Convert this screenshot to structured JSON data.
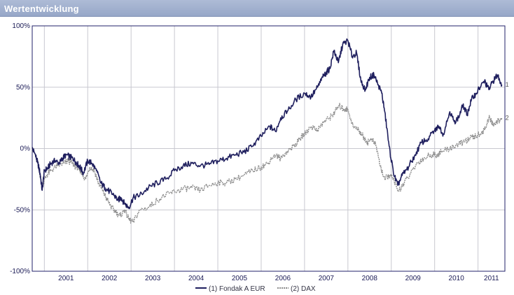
{
  "header": {
    "title": "Wertentwicklung"
  },
  "chart_data": {
    "type": "line",
    "title": "Wertentwicklung",
    "xlabel": "",
    "ylabel": "",
    "x_range": [
      2000.72,
      2011.62
    ],
    "ylim": [
      -100,
      100
    ],
    "y_ticks": [
      {
        "value": 100,
        "label": "100%"
      },
      {
        "value": 50,
        "label": "50%"
      },
      {
        "value": 0,
        "label": "0%"
      },
      {
        "value": -50,
        "label": "-50%"
      },
      {
        "value": -100,
        "label": "-100%"
      }
    ],
    "x_ticks": [
      {
        "value": 2001,
        "label": "2001"
      },
      {
        "value": 2002,
        "label": "2002"
      },
      {
        "value": 2003,
        "label": "2003"
      },
      {
        "value": 2004,
        "label": "2004"
      },
      {
        "value": 2005,
        "label": "2005"
      },
      {
        "value": 2006,
        "label": "2006"
      },
      {
        "value": 2007,
        "label": "2007"
      },
      {
        "value": 2008,
        "label": "2008"
      },
      {
        "value": 2009,
        "label": "2009"
      },
      {
        "value": 2010,
        "label": "2010"
      },
      {
        "value": 2011,
        "label": "2011"
      }
    ],
    "x_gridlines": [
      2001,
      2002,
      2003,
      2004,
      2005,
      2006,
      2007,
      2008,
      2009,
      2010,
      2011
    ],
    "grid": true,
    "legend": "bottom-center",
    "series": [
      {
        "name": "(1) Fondak A EUR",
        "end_label": "1",
        "color": "#1f1f5e",
        "x": [
          2000.72,
          2000.78,
          2000.85,
          2000.9,
          2000.95,
          2001.0,
          2001.08,
          2001.15,
          2001.25,
          2001.35,
          2001.42,
          2001.5,
          2001.6,
          2001.68,
          2001.75,
          2001.82,
          2001.9,
          2002.0,
          2002.1,
          2002.2,
          2002.3,
          2002.4,
          2002.5,
          2002.6,
          2002.7,
          2002.77,
          2002.85,
          2002.95,
          2003.05,
          2003.2,
          2003.4,
          2003.6,
          2003.8,
          2004.0,
          2004.2,
          2004.4,
          2004.6,
          2004.8,
          2005.0,
          2005.2,
          2005.4,
          2005.6,
          2005.8,
          2006.0,
          2006.2,
          2006.33,
          2006.45,
          2006.6,
          2006.8,
          2007.0,
          2007.15,
          2007.3,
          2007.42,
          2007.5,
          2007.58,
          2007.68,
          2007.78,
          2007.88,
          2008.0,
          2008.1,
          2008.2,
          2008.3,
          2008.4,
          2008.5,
          2008.6,
          2008.7,
          2008.78,
          2008.85,
          2008.95,
          2009.05,
          2009.15,
          2009.25,
          2009.4,
          2009.55,
          2009.7,
          2009.85,
          2010.0,
          2010.1,
          2010.2,
          2010.35,
          2010.45,
          2010.55,
          2010.65,
          2010.75,
          2010.85,
          2010.95,
          2011.05,
          2011.15,
          2011.25,
          2011.35,
          2011.45,
          2011.55
        ],
        "values": [
          0,
          -4,
          -12,
          -20,
          -34,
          -18,
          -16,
          -12,
          -10,
          -12,
          -8,
          -5,
          -7,
          -9,
          -12,
          -15,
          -20,
          -10,
          -12,
          -18,
          -28,
          -32,
          -35,
          -38,
          -42,
          -40,
          -45,
          -48,
          -40,
          -38,
          -32,
          -28,
          -25,
          -18,
          -14,
          -12,
          -14,
          -13,
          -10,
          -8,
          -5,
          -3,
          2,
          10,
          18,
          14,
          25,
          30,
          40,
          45,
          42,
          50,
          58,
          62,
          65,
          80,
          70,
          85,
          88,
          75,
          78,
          55,
          48,
          58,
          60,
          52,
          45,
          30,
          2,
          -20,
          -30,
          -22,
          -15,
          -5,
          5,
          8,
          15,
          18,
          12,
          30,
          22,
          25,
          35,
          28,
          40,
          45,
          50,
          55,
          48,
          55,
          60,
          52
        ]
      },
      {
        "name": "(2) DAX",
        "end_label": "2",
        "color": "#8c8c8c",
        "x": [
          2000.72,
          2000.8,
          2000.88,
          2000.95,
          2001.05,
          2001.15,
          2001.3,
          2001.45,
          2001.55,
          2001.65,
          2001.75,
          2001.85,
          2001.95,
          2002.05,
          2002.15,
          2002.25,
          2002.35,
          2002.45,
          2002.55,
          2002.65,
          2002.75,
          2002.85,
          2002.95,
          2003.05,
          2003.2,
          2003.4,
          2003.6,
          2003.8,
          2004.0,
          2004.2,
          2004.4,
          2004.6,
          2004.8,
          2005.0,
          2005.2,
          2005.4,
          2005.6,
          2005.8,
          2006.0,
          2006.15,
          2006.3,
          2006.45,
          2006.6,
          2006.75,
          2006.9,
          2007.0,
          2007.15,
          2007.3,
          2007.45,
          2007.58,
          2007.7,
          2007.8,
          2007.9,
          2008.0,
          2008.12,
          2008.25,
          2008.35,
          2008.45,
          2008.55,
          2008.65,
          2008.75,
          2008.85,
          2008.95,
          2009.05,
          2009.15,
          2009.3,
          2009.45,
          2009.6,
          2009.75,
          2009.9,
          2010.05,
          2010.2,
          2010.35,
          2010.5,
          2010.65,
          2010.8,
          2010.95,
          2011.05,
          2011.15,
          2011.25,
          2011.35,
          2011.45,
          2011.55
        ],
        "values": [
          0,
          -6,
          -18,
          -30,
          -22,
          -18,
          -14,
          -12,
          -10,
          -12,
          -16,
          -20,
          -25,
          -15,
          -18,
          -28,
          -35,
          -42,
          -48,
          -52,
          -55,
          -50,
          -58,
          -60,
          -50,
          -48,
          -42,
          -38,
          -35,
          -33,
          -32,
          -34,
          -30,
          -28,
          -28,
          -25,
          -22,
          -18,
          -15,
          -12,
          -5,
          -8,
          -2,
          2,
          8,
          12,
          18,
          15,
          22,
          25,
          30,
          35,
          32,
          32,
          18,
          15,
          10,
          5,
          8,
          2,
          -15,
          -25,
          -22,
          -25,
          -35,
          -28,
          -20,
          -12,
          -8,
          -5,
          -5,
          -2,
          0,
          3,
          5,
          8,
          10,
          12,
          15,
          25,
          20,
          22,
          25
        ]
      }
    ]
  }
}
